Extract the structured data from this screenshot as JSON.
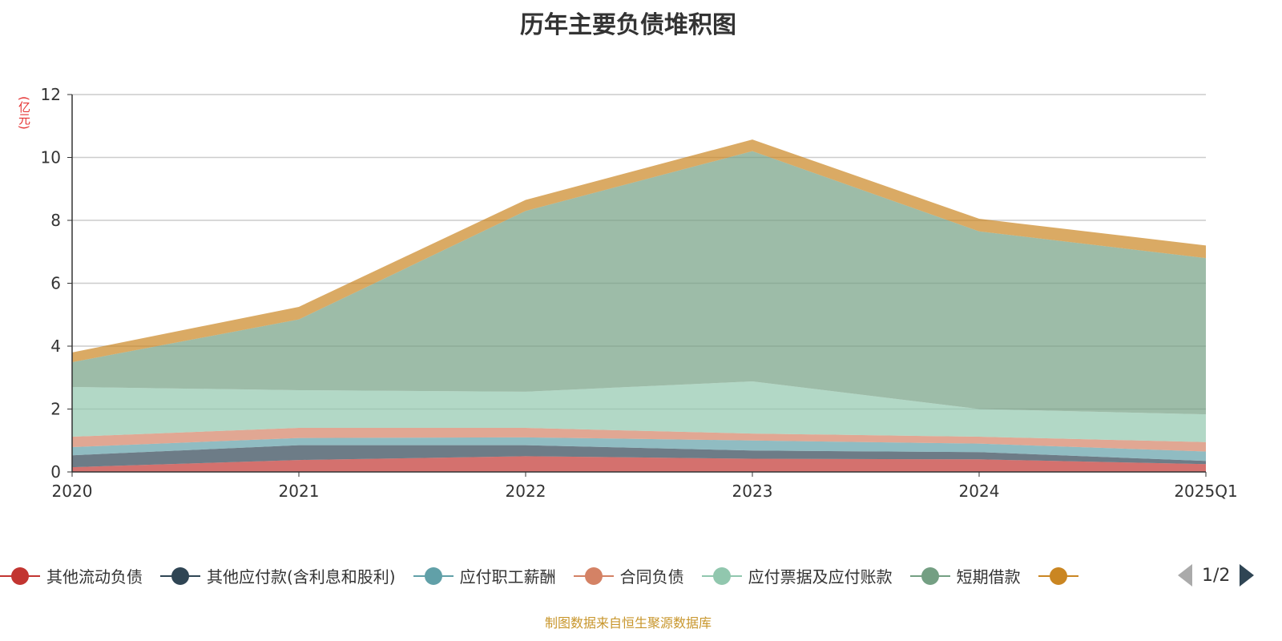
{
  "title": "历年主要负债堆积图",
  "unit": "(亿元)",
  "source": "制图数据来自恒生聚源数据库",
  "pager": "1/2",
  "chart_data": {
    "type": "area",
    "stacked": true,
    "title": "历年主要负债堆积图",
    "ylabel": "(亿元)",
    "ylim": [
      0,
      12
    ],
    "yticks": [
      0,
      2,
      4,
      6,
      8,
      10,
      12
    ],
    "grid": true,
    "legend_placement": "bottom",
    "categories": [
      "2020",
      "2021",
      "2022",
      "2023",
      "2024",
      "2025Q1"
    ],
    "series": [
      {
        "name": "其他流动负债",
        "color": "#c23531",
        "values": [
          0.15,
          0.38,
          0.5,
          0.42,
          0.4,
          0.25
        ]
      },
      {
        "name": "其他应付款(含利息和股利)",
        "color": "#2f4554",
        "values": [
          0.38,
          0.47,
          0.35,
          0.26,
          0.23,
          0.1
        ]
      },
      {
        "name": "应付职工薪酬",
        "color": "#61a0a8",
        "values": [
          0.26,
          0.23,
          0.25,
          0.32,
          0.27,
          0.3
        ]
      },
      {
        "name": "合同负债",
        "color": "#d48265",
        "values": [
          0.33,
          0.32,
          0.3,
          0.22,
          0.22,
          0.3
        ]
      },
      {
        "name": "应付票据及应付账款",
        "color": "#91c7ae",
        "values": [
          1.58,
          1.2,
          1.15,
          1.66,
          0.88,
          0.88
        ]
      },
      {
        "name": "短期借款",
        "color": "#749f83",
        "values": [
          0.79,
          2.25,
          5.75,
          7.32,
          5.65,
          4.97
        ]
      },
      {
        "name": "",
        "color": "#ca8622",
        "values": [
          0.31,
          0.4,
          0.35,
          0.37,
          0.4,
          0.4
        ]
      }
    ]
  }
}
